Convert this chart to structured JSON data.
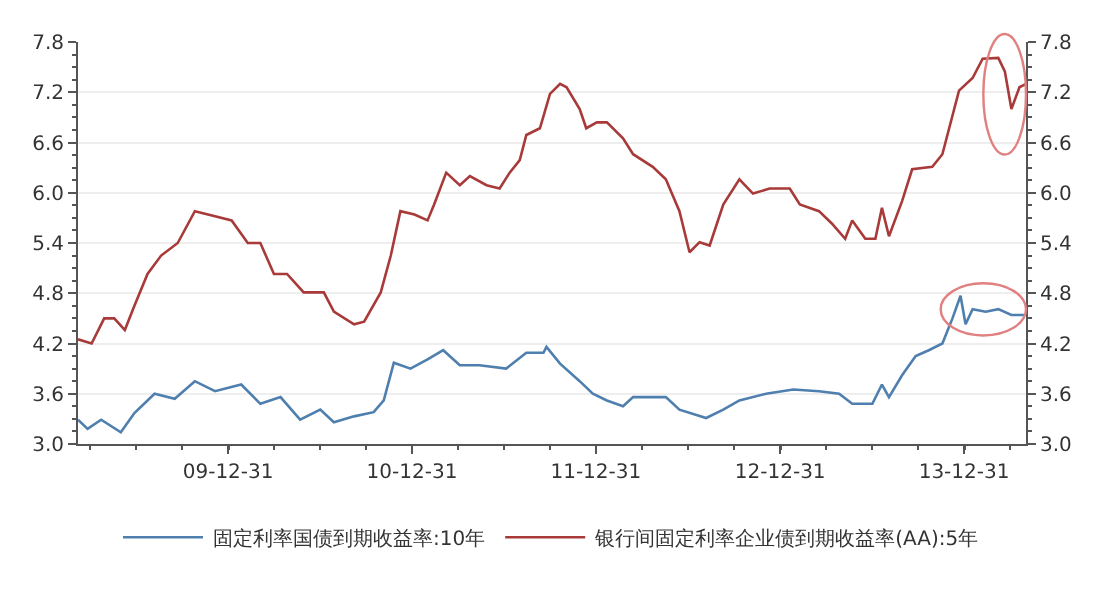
{
  "chart_data": {
    "type": "line",
    "xlim": [
      "2009-03-08",
      "2014-05-03"
    ],
    "xticks": [
      {
        "value": "2009-12-31",
        "label": "09-12-31"
      },
      {
        "value": "2010-12-31",
        "label": "10-12-31"
      },
      {
        "value": "2011-12-31",
        "label": "11-12-31"
      },
      {
        "value": "2012-12-31",
        "label": "12-12-31"
      },
      {
        "value": "2013-12-31",
        "label": "13-12-31"
      }
    ],
    "ylim": [
      3.0,
      7.8
    ],
    "yticks": [
      {
        "value": 3.0,
        "label": "3.0"
      },
      3.6,
      {
        "value": 4.2,
        "label": "4.2"
      },
      4.8,
      5.4,
      {
        "value": 6.0,
        "label": "6.0"
      },
      6.6,
      7.2,
      7.8
    ],
    "y2lim": [
      3.0,
      7.8
    ],
    "y2ticks": [
      {
        "value": 3.0,
        "label": "3.0"
      },
      3.6,
      {
        "value": 4.2,
        "label": "4.2"
      },
      4.8,
      5.4,
      {
        "value": 6.0,
        "label": "6.0"
      },
      6.6,
      7.2,
      7.8
    ],
    "grid": "y",
    "legend": "bottom",
    "marker": "none",
    "line_style": "solid",
    "series": [
      {
        "name": "固定利率国债到期收益率:10年",
        "color": "#4f7fae",
        "x": [
          "2009-03-08",
          "2009-03-27",
          "2009-04-23",
          "2009-06-01",
          "2009-06-28",
          "2009-08-07",
          "2009-09-16",
          "2009-10-26",
          "2009-12-05",
          "2010-01-26",
          "2010-03-05",
          "2010-04-14",
          "2010-05-23",
          "2010-07-02",
          "2010-07-29",
          "2010-09-07",
          "2010-10-16",
          "2010-11-05",
          "2010-11-25",
          "2010-12-28",
          "2011-01-31",
          "2011-03-03",
          "2011-04-05",
          "2011-05-14",
          "2011-07-06",
          "2011-08-15",
          "2011-09-18",
          "2011-09-24",
          "2011-10-21",
          "2011-11-29",
          "2011-12-25",
          "2012-01-22",
          "2012-02-23",
          "2012-03-14",
          "2012-05-18",
          "2012-06-14",
          "2012-08-06",
          "2012-09-09",
          "2012-10-11",
          "2012-12-03",
          "2013-01-26",
          "2013-03-18",
          "2013-04-27",
          "2013-05-23",
          "2013-07-02",
          "2013-07-21",
          "2013-08-04",
          "2013-08-30",
          "2013-09-26",
          "2013-10-22",
          "2013-11-18",
          "2013-12-08",
          "2013-12-24",
          "2014-01-03",
          "2014-01-17",
          "2014-02-12",
          "2014-03-09",
          "2014-04-04",
          "2014-04-30"
        ],
        "values": [
          3.29,
          3.18,
          3.29,
          3.14,
          3.37,
          3.6,
          3.54,
          3.75,
          3.63,
          3.71,
          3.48,
          3.56,
          3.29,
          3.41,
          3.26,
          3.33,
          3.38,
          3.52,
          3.97,
          3.9,
          4.01,
          4.12,
          3.94,
          3.94,
          3.9,
          4.09,
          4.09,
          4.16,
          3.96,
          3.75,
          3.6,
          3.52,
          3.45,
          3.56,
          3.56,
          3.41,
          3.31,
          3.41,
          3.52,
          3.6,
          3.65,
          3.63,
          3.6,
          3.48,
          3.48,
          3.71,
          3.56,
          3.82,
          4.05,
          4.12,
          4.2,
          4.5,
          4.77,
          4.43,
          4.61,
          4.58,
          4.61,
          4.54,
          4.54
        ]
      },
      {
        "name": "银行间固定利率企业债到期收益率(AA):5年",
        "color": "#a83a3a",
        "x": [
          "2009-03-08",
          "2009-04-04",
          "2009-04-29",
          "2009-05-19",
          "2009-06-09",
          "2009-06-28",
          "2009-07-24",
          "2009-08-20",
          "2009-09-22",
          "2009-10-26",
          "2009-12-05",
          "2010-01-07",
          "2010-02-08",
          "2010-03-05",
          "2010-04-01",
          "2010-04-27",
          "2010-05-30",
          "2010-07-09",
          "2010-07-29",
          "2010-09-07",
          "2010-09-27",
          "2010-10-30",
          "2010-11-19",
          "2010-12-08",
          "2011-01-05",
          "2011-01-31",
          "2011-02-13",
          "2011-03-09",
          "2011-04-05",
          "2011-04-25",
          "2011-05-28",
          "2011-06-23",
          "2011-07-13",
          "2011-08-02",
          "2011-08-15",
          "2011-09-11",
          "2011-10-01",
          "2011-10-21",
          "2011-11-03",
          "2011-11-29",
          "2011-12-12",
          "2012-01-02",
          "2012-01-22",
          "2012-02-23",
          "2012-03-14",
          "2012-04-22",
          "2012-05-18",
          "2012-06-14",
          "2012-07-04",
          "2012-07-24",
          "2012-08-13",
          "2012-09-09",
          "2012-10-11",
          "2012-11-07",
          "2012-12-10",
          "2013-01-19",
          "2013-02-08",
          "2013-03-18",
          "2013-04-13",
          "2013-05-09",
          "2013-05-23",
          "2013-06-18",
          "2013-07-08",
          "2013-07-21",
          "2013-08-04",
          "2013-08-30",
          "2013-09-19",
          "2013-10-29",
          "2013-11-18",
          "2013-12-21",
          "2014-01-17",
          "2014-02-06",
          "2014-03-09",
          "2014-03-22",
          "2014-04-04",
          "2014-04-20",
          "2014-05-03"
        ],
        "values": [
          4.25,
          4.2,
          4.5,
          4.5,
          4.36,
          4.65,
          5.03,
          5.25,
          5.4,
          5.78,
          5.72,
          5.67,
          5.4,
          5.4,
          5.03,
          5.03,
          4.81,
          4.81,
          4.58,
          4.43,
          4.46,
          4.81,
          5.25,
          5.78,
          5.74,
          5.67,
          5.86,
          6.24,
          6.09,
          6.2,
          6.09,
          6.05,
          6.24,
          6.39,
          6.69,
          6.77,
          7.18,
          7.3,
          7.26,
          7.0,
          6.77,
          6.84,
          6.84,
          6.65,
          6.46,
          6.31,
          6.16,
          5.78,
          5.29,
          5.41,
          5.37,
          5.86,
          6.16,
          5.99,
          6.05,
          6.05,
          5.86,
          5.78,
          5.63,
          5.45,
          5.67,
          5.45,
          5.45,
          5.82,
          5.48,
          5.9,
          6.28,
          6.31,
          6.46,
          7.22,
          7.37,
          7.6,
          7.61,
          7.45,
          7.0,
          7.26,
          7.3
        ]
      }
    ]
  }
}
